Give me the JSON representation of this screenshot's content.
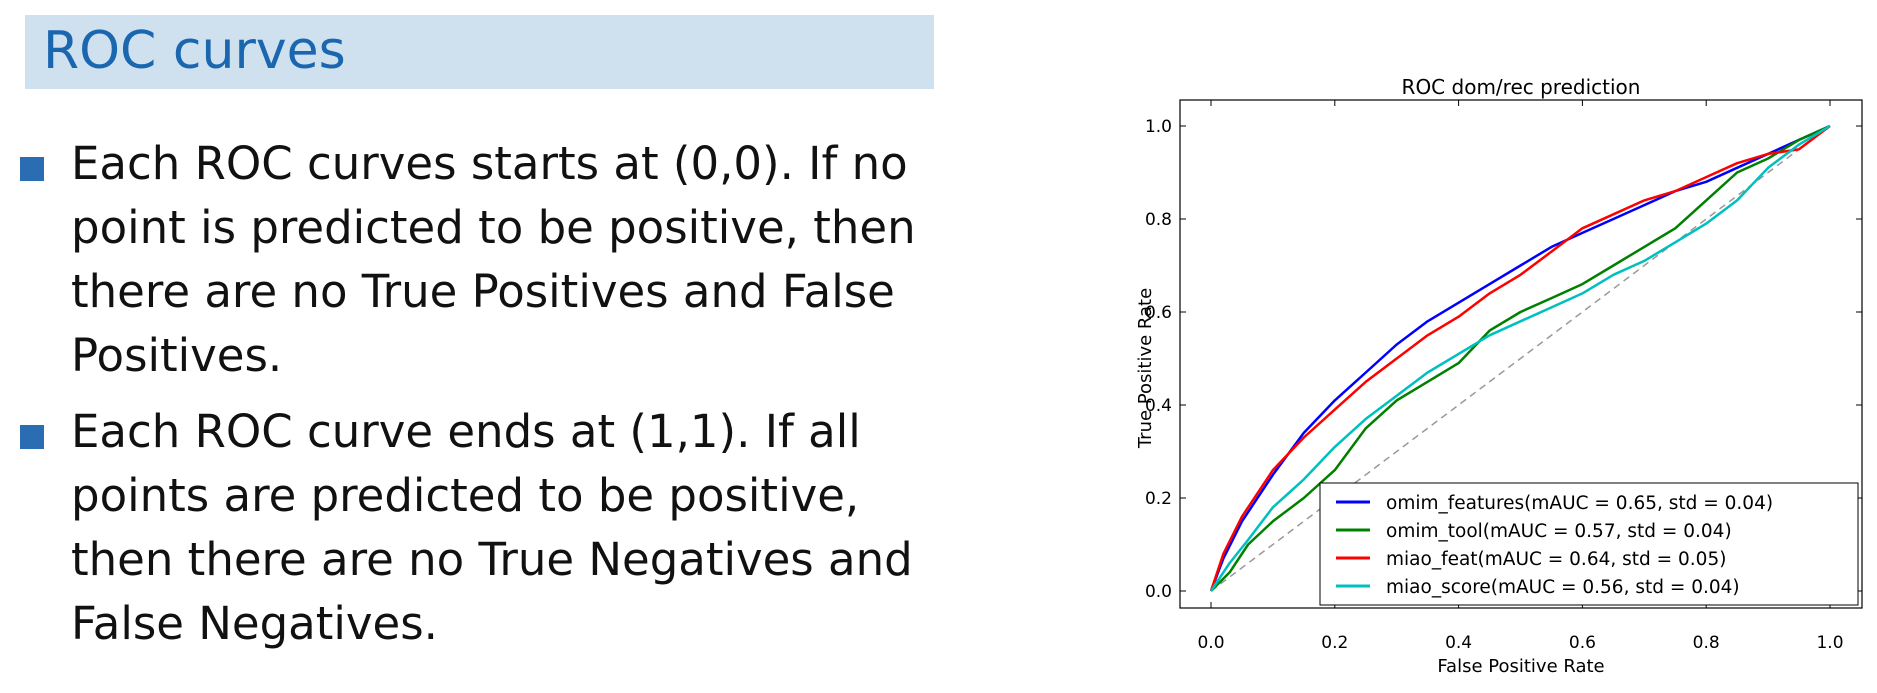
{
  "slide": {
    "title": "ROC curves",
    "bullets": [
      "Each ROC curves starts at (0,0). If no point is predicted to be positive, then there are no True Positives and False Positives.",
      "Each ROC curve ends at (1,1). If all points are predicted to be positive, then there are no True Negatives and False Negatives."
    ]
  },
  "chart_data": {
    "type": "line",
    "title": "ROC dom/rec prediction",
    "xlabel": "False Positive Rate",
    "ylabel": "True Positive Rate",
    "xlim": [
      0,
      1
    ],
    "ylim": [
      0,
      1
    ],
    "xticks": [
      "0.0",
      "0.2",
      "0.4",
      "0.6",
      "0.8",
      "1.0"
    ],
    "yticks": [
      "0.0",
      "0.2",
      "0.4",
      "0.6",
      "0.8",
      "1.0"
    ],
    "grid": false,
    "legend_position": "bottom-right",
    "diagonal": {
      "x": [
        0,
        1
      ],
      "y": [
        0,
        1
      ],
      "color": "#999999",
      "style": "dashed"
    },
    "series": [
      {
        "name": "omim_features(mAUC = 0.65, std = 0.04)",
        "color": "#0000ff",
        "x": [
          0,
          0.02,
          0.05,
          0.1,
          0.15,
          0.2,
          0.25,
          0.3,
          0.35,
          0.4,
          0.45,
          0.5,
          0.55,
          0.6,
          0.65,
          0.7,
          0.75,
          0.8,
          0.85,
          0.9,
          0.95,
          1.0
        ],
        "y": [
          0,
          0.07,
          0.15,
          0.25,
          0.34,
          0.41,
          0.47,
          0.53,
          0.58,
          0.62,
          0.66,
          0.7,
          0.74,
          0.77,
          0.8,
          0.83,
          0.86,
          0.88,
          0.91,
          0.94,
          0.97,
          1.0
        ]
      },
      {
        "name": "omim_tool(mAUC = 0.57, std = 0.04)",
        "color": "#008000",
        "x": [
          0,
          0.03,
          0.06,
          0.1,
          0.15,
          0.2,
          0.25,
          0.3,
          0.35,
          0.4,
          0.45,
          0.5,
          0.55,
          0.6,
          0.65,
          0.7,
          0.75,
          0.8,
          0.85,
          0.9,
          0.95,
          1.0
        ],
        "y": [
          0,
          0.04,
          0.1,
          0.15,
          0.2,
          0.26,
          0.35,
          0.41,
          0.45,
          0.49,
          0.56,
          0.6,
          0.63,
          0.66,
          0.7,
          0.74,
          0.78,
          0.84,
          0.9,
          0.93,
          0.97,
          1.0
        ]
      },
      {
        "name": "miao_feat(mAUC = 0.64, std = 0.05)",
        "color": "#ff0000",
        "x": [
          0,
          0.02,
          0.05,
          0.1,
          0.15,
          0.2,
          0.25,
          0.3,
          0.35,
          0.4,
          0.45,
          0.5,
          0.55,
          0.6,
          0.65,
          0.7,
          0.75,
          0.8,
          0.85,
          0.9,
          0.95,
          1.0
        ],
        "y": [
          0,
          0.08,
          0.16,
          0.26,
          0.33,
          0.39,
          0.45,
          0.5,
          0.55,
          0.59,
          0.64,
          0.68,
          0.73,
          0.78,
          0.81,
          0.84,
          0.86,
          0.89,
          0.92,
          0.94,
          0.95,
          1.0
        ]
      },
      {
        "name": "miao_score(mAUC = 0.56, std = 0.04)",
        "color": "#00bfbf",
        "x": [
          0,
          0.03,
          0.06,
          0.1,
          0.15,
          0.2,
          0.25,
          0.3,
          0.35,
          0.4,
          0.45,
          0.5,
          0.55,
          0.6,
          0.65,
          0.7,
          0.75,
          0.8,
          0.85,
          0.9,
          0.95,
          1.0
        ],
        "y": [
          0,
          0.06,
          0.11,
          0.18,
          0.24,
          0.31,
          0.37,
          0.42,
          0.47,
          0.51,
          0.55,
          0.58,
          0.61,
          0.64,
          0.68,
          0.71,
          0.75,
          0.79,
          0.84,
          0.91,
          0.96,
          1.0
        ]
      }
    ]
  }
}
